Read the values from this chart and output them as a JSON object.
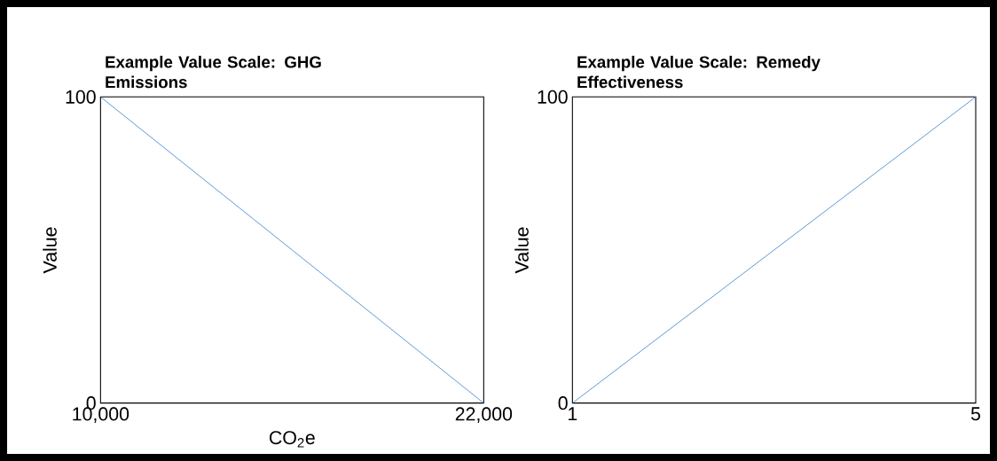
{
  "chart_data": [
    {
      "type": "line",
      "title": "Example Value Scale: GHG Emissions",
      "xlabel": "CO$_{2}$e",
      "ylabel": "Value",
      "x": [
        10000,
        22000
      ],
      "values": [
        100,
        0
      ],
      "color": "#5b9bd5",
      "xlim": [
        10000,
        22000
      ],
      "ylim": [
        0,
        100
      ],
      "xticks": [
        {
          "value": 10000,
          "label": "10,000"
        },
        {
          "value": 22000,
          "label": "22,000"
        }
      ],
      "yticks": [
        0,
        100
      ]
    },
    {
      "type": "line",
      "title": "Example Value Scale: Remedy Effectiveness",
      "ylabel": "Value",
      "x": [
        1,
        5
      ],
      "values": [
        0,
        100
      ],
      "color": "#5b9bd5",
      "xlim": [
        1,
        5
      ],
      "ylim": [
        0,
        100
      ],
      "xticks": [
        1,
        5
      ],
      "yticks": [
        0,
        100
      ]
    }
  ]
}
